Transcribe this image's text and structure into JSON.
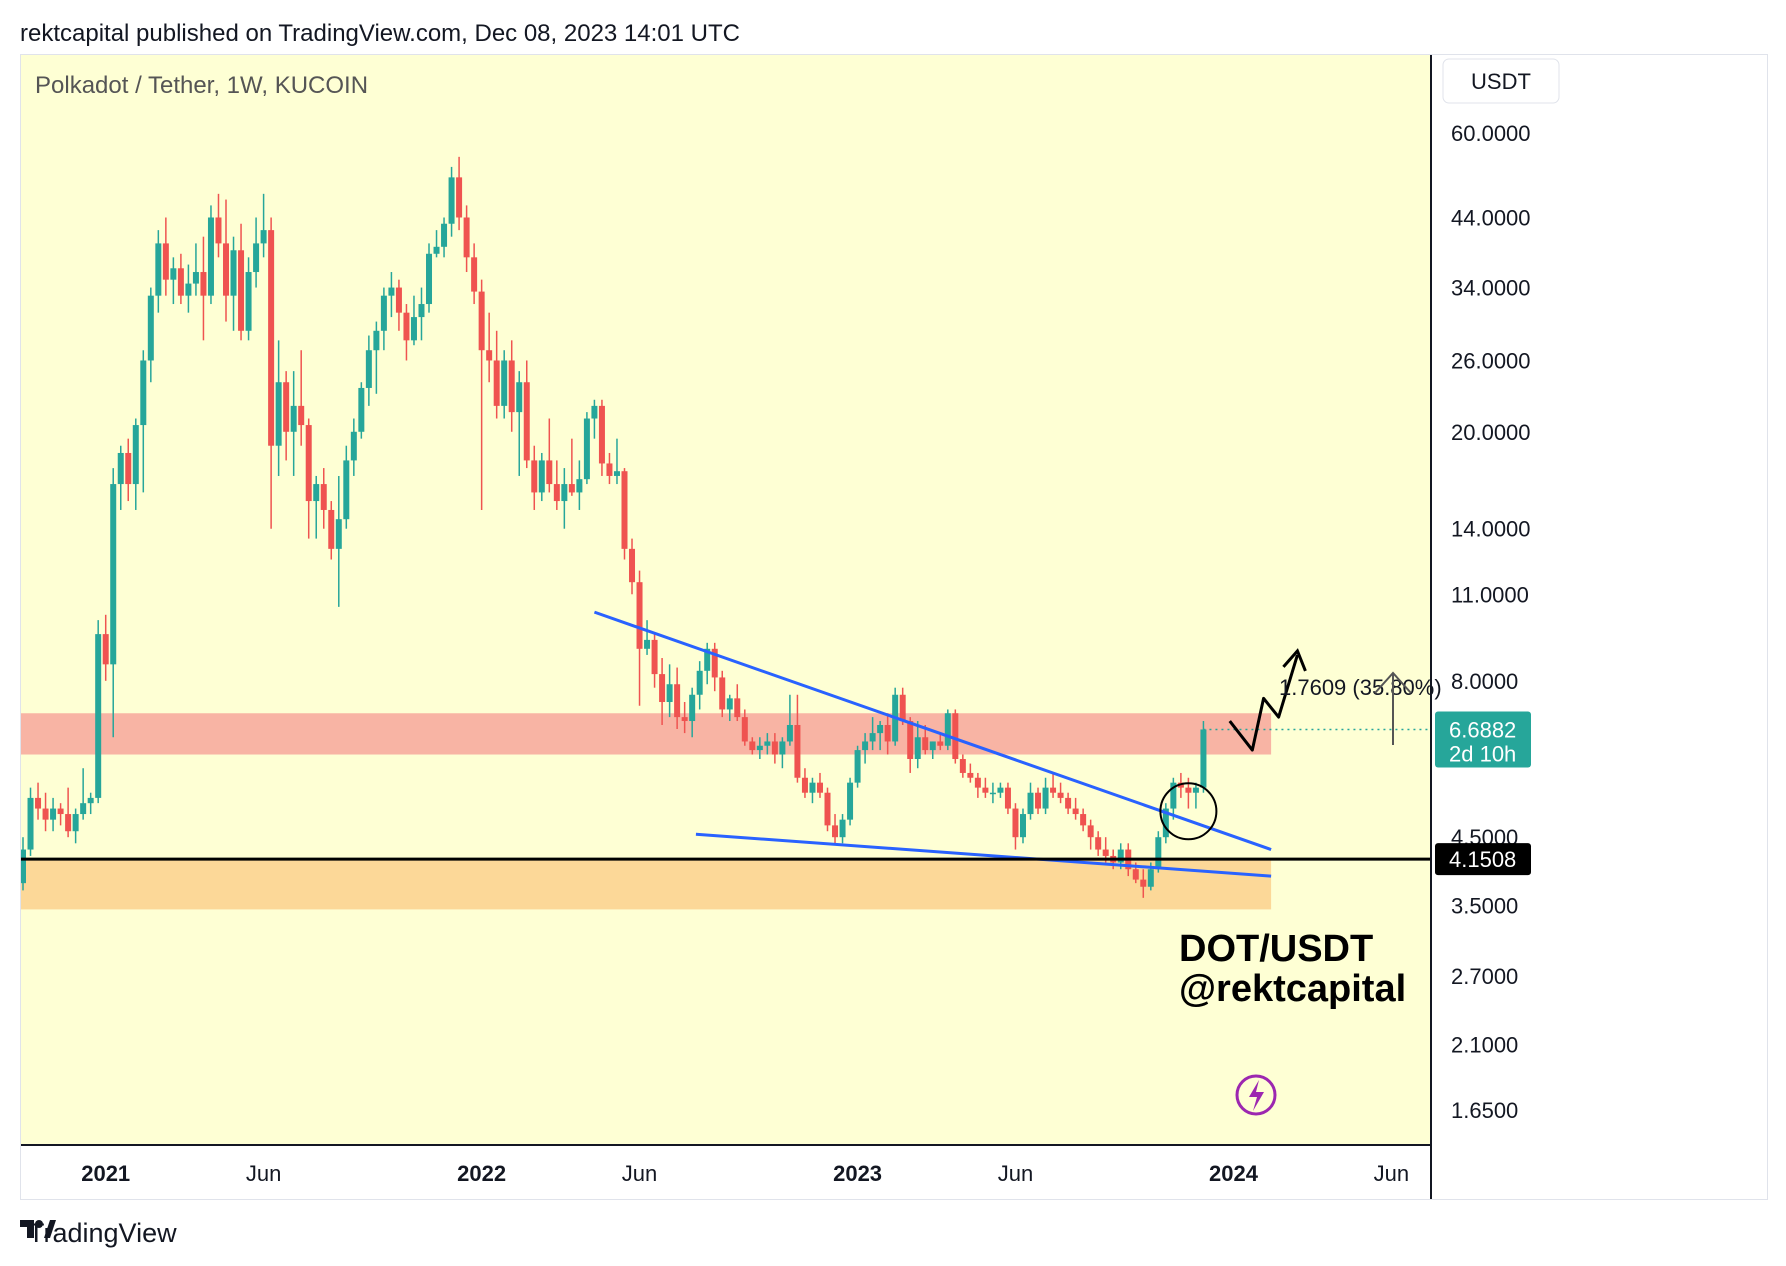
{
  "header": {
    "published_line": "rektcapital published on TradingView.com, Dec 08, 2023 14:01 UTC"
  },
  "footer": {
    "brand": "TradingView",
    "logo_icon": "tradingview-logo-icon"
  },
  "chart_data": {
    "type": "candlestick",
    "title": "Polkadot / Tether, 1W, KUCOIN",
    "currency": "USDT",
    "scale": "log",
    "ylim": [
      1.45,
      80
    ],
    "y_ticks": [
      "60.0000",
      "44.0000",
      "34.0000",
      "26.0000",
      "20.0000",
      "14.0000",
      "11.0000",
      "8.0000",
      "4.5000",
      "3.5000",
      "2.7000",
      "2.1000",
      "1.6500"
    ],
    "x_ticks": [
      {
        "label": "2021",
        "bold": true,
        "t": 2021.0
      },
      {
        "label": "Jun",
        "bold": false,
        "t": 2021.42
      },
      {
        "label": "2022",
        "bold": true,
        "t": 2022.0
      },
      {
        "label": "Jun",
        "bold": false,
        "t": 2022.42
      },
      {
        "label": "2023",
        "bold": true,
        "t": 2023.0
      },
      {
        "label": "Jun",
        "bold": false,
        "t": 2023.42
      },
      {
        "label": "2024",
        "bold": true,
        "t": 2024.0
      },
      {
        "label": "Jun",
        "bold": false,
        "t": 2024.42
      }
    ],
    "price_label": {
      "value": "6.6882",
      "price": 6.6882,
      "countdown": "2d 10h",
      "color": "#26a69a"
    },
    "support_label": {
      "value": "4.1508",
      "price": 4.1508
    },
    "measure_label": "1.7609 (35.80%)",
    "annotation_lines": [
      "DOT/USDT",
      "@rektcapital"
    ],
    "zones": [
      {
        "name": "resistance-zone",
        "from": 6.1,
        "to": 7.1,
        "color": "#f8b4a4"
      },
      {
        "name": "support-zone",
        "from": 3.45,
        "to": 4.15,
        "color": "#fcd898"
      }
    ],
    "trendlines": [
      {
        "name": "descending-resistance-line",
        "from": [
          2022.3,
          10.3
        ],
        "to": [
          2024.1,
          4.3
        ]
      },
      {
        "name": "lower-wedge-line",
        "from": [
          2022.57,
          4.55
        ],
        "to": [
          2024.1,
          3.9
        ]
      }
    ],
    "colors": {
      "up": "#26a69a",
      "down": "#ef5350",
      "background": "#feffd4",
      "trendline": "#2962ff",
      "upcolor_text": "#ffffff"
    },
    "ohlc": [
      [
        2020.78,
        3.8,
        4.5,
        3.7,
        4.3
      ],
      [
        2020.8,
        4.3,
        5.4,
        4.2,
        5.2
      ],
      [
        2020.82,
        5.2,
        5.5,
        4.8,
        5.0
      ],
      [
        2020.84,
        5.0,
        5.3,
        4.6,
        4.8
      ],
      [
        2020.86,
        4.8,
        5.2,
        4.6,
        5.0
      ],
      [
        2020.88,
        5.0,
        5.1,
        4.7,
        4.9
      ],
      [
        2020.9,
        4.9,
        5.4,
        4.5,
        4.6
      ],
      [
        2020.92,
        4.6,
        5.0,
        4.4,
        4.9
      ],
      [
        2020.94,
        4.9,
        5.8,
        4.8,
        5.1
      ],
      [
        2020.96,
        5.1,
        5.3,
        4.9,
        5.2
      ],
      [
        2020.98,
        5.2,
        10.0,
        5.1,
        9.5
      ],
      [
        2021.0,
        9.5,
        10.2,
        8.0,
        8.5
      ],
      [
        2021.02,
        8.5,
        17.5,
        6.5,
        16.5
      ],
      [
        2021.04,
        16.5,
        19.0,
        15.0,
        18.5
      ],
      [
        2021.06,
        18.5,
        19.5,
        15.5,
        16.5
      ],
      [
        2021.08,
        16.5,
        21.0,
        15.0,
        20.5
      ],
      [
        2021.1,
        20.5,
        27.0,
        16.0,
        26.0
      ],
      [
        2021.12,
        26.0,
        34.0,
        24.0,
        33.0
      ],
      [
        2021.14,
        33.0,
        42.0,
        31.0,
        40.0
      ],
      [
        2021.16,
        40.0,
        44.0,
        33.0,
        35.0
      ],
      [
        2021.18,
        35.0,
        38.0,
        32.0,
        36.5
      ],
      [
        2021.2,
        36.5,
        38.5,
        32.0,
        33.0
      ],
      [
        2021.22,
        33.0,
        37.0,
        31.0,
        34.5
      ],
      [
        2021.24,
        34.5,
        40.0,
        33.0,
        36.0
      ],
      [
        2021.26,
        36.0,
        41.0,
        28.0,
        33.0
      ],
      [
        2021.28,
        33.0,
        46.0,
        32.0,
        44.0
      ],
      [
        2021.3,
        44.0,
        48.0,
        38.0,
        40.0
      ],
      [
        2021.32,
        40.0,
        47.0,
        30.0,
        33.0
      ],
      [
        2021.34,
        33.0,
        41.0,
        29.0,
        39.0
      ],
      [
        2021.36,
        39.0,
        43.0,
        28.0,
        29.0
      ],
      [
        2021.38,
        29.0,
        38.0,
        28.0,
        36.0
      ],
      [
        2021.4,
        36.0,
        44.0,
        34.0,
        40.0
      ],
      [
        2021.42,
        40.0,
        48.0,
        38.0,
        42.0
      ],
      [
        2021.44,
        42.0,
        44.0,
        14.0,
        19.0
      ],
      [
        2021.46,
        19.0,
        28.0,
        17.0,
        24.0
      ],
      [
        2021.48,
        24.0,
        25.0,
        18.0,
        20.0
      ],
      [
        2021.5,
        20.0,
        25.0,
        17.0,
        22.0
      ],
      [
        2021.52,
        22.0,
        27.0,
        19.0,
        20.5
      ],
      [
        2021.54,
        20.5,
        21.0,
        13.5,
        15.5
      ],
      [
        2021.56,
        15.5,
        17.0,
        13.5,
        16.5
      ],
      [
        2021.58,
        16.5,
        17.5,
        14.0,
        15.0
      ],
      [
        2021.6,
        15.0,
        15.5,
        12.5,
        13.0
      ],
      [
        2021.62,
        13.0,
        17.0,
        10.5,
        14.5
      ],
      [
        2021.64,
        14.5,
        19.0,
        14.0,
        18.0
      ],
      [
        2021.66,
        18.0,
        21.0,
        17.0,
        20.0
      ],
      [
        2021.68,
        20.0,
        24.0,
        19.5,
        23.5
      ],
      [
        2021.7,
        23.5,
        28.5,
        22.0,
        27.0
      ],
      [
        2021.72,
        27.0,
        30.0,
        23.0,
        29.0
      ],
      [
        2021.74,
        29.0,
        34.0,
        27.0,
        33.0
      ],
      [
        2021.76,
        33.0,
        36.0,
        30.5,
        34.0
      ],
      [
        2021.78,
        34.0,
        35.0,
        29.0,
        31.0
      ],
      [
        2021.8,
        31.0,
        32.0,
        26.0,
        28.0
      ],
      [
        2021.82,
        28.0,
        33.0,
        27.5,
        30.5
      ],
      [
        2021.84,
        30.5,
        34.0,
        28.0,
        32.0
      ],
      [
        2021.86,
        32.0,
        40.0,
        31.0,
        38.5
      ],
      [
        2021.88,
        38.5,
        42.0,
        38.0,
        39.5
      ],
      [
        2021.9,
        39.5,
        44.0,
        38.0,
        43.0
      ],
      [
        2021.92,
        43.0,
        53.0,
        41.0,
        51.0
      ],
      [
        2021.94,
        51.0,
        55.0,
        42.0,
        44.0
      ],
      [
        2021.96,
        44.0,
        46.0,
        36.0,
        38.0
      ],
      [
        2021.98,
        38.0,
        40.0,
        32.0,
        33.5
      ],
      [
        2022.0,
        33.5,
        35.0,
        15.0,
        27.0
      ],
      [
        2022.02,
        27.0,
        31.0,
        24.0,
        26.0
      ],
      [
        2022.04,
        26.0,
        29.0,
        21.0,
        22.0
      ],
      [
        2022.06,
        22.0,
        27.0,
        21.0,
        26.0
      ],
      [
        2022.08,
        26.0,
        28.0,
        20.0,
        21.5
      ],
      [
        2022.1,
        21.5,
        25.0,
        17.0,
        24.0
      ],
      [
        2022.12,
        24.0,
        26.0,
        17.5,
        18.0
      ],
      [
        2022.14,
        18.0,
        19.0,
        15.0,
        16.0
      ],
      [
        2022.16,
        16.0,
        18.5,
        15.5,
        18.0
      ],
      [
        2022.18,
        18.0,
        21.0,
        16.0,
        16.5
      ],
      [
        2022.2,
        16.5,
        18.0,
        15.0,
        15.5
      ],
      [
        2022.22,
        15.5,
        17.5,
        14.0,
        16.5
      ],
      [
        2022.24,
        16.5,
        19.5,
        15.8,
        16.0
      ],
      [
        2022.26,
        16.0,
        18.0,
        15.0,
        16.8
      ],
      [
        2022.28,
        16.8,
        21.5,
        16.5,
        21.0
      ],
      [
        2022.3,
        21.0,
        22.5,
        19.5,
        22.0
      ],
      [
        2022.32,
        22.0,
        22.5,
        17.0,
        17.8
      ],
      [
        2022.34,
        17.8,
        18.5,
        16.5,
        17.0
      ],
      [
        2022.36,
        17.0,
        19.5,
        16.5,
        17.3
      ],
      [
        2022.38,
        17.3,
        17.5,
        12.5,
        13.0
      ],
      [
        2022.4,
        13.0,
        13.5,
        11.0,
        11.5
      ],
      [
        2022.42,
        11.5,
        12.0,
        7.3,
        9.0
      ],
      [
        2022.44,
        9.0,
        10.0,
        8.8,
        9.3
      ],
      [
        2022.46,
        9.3,
        9.5,
        7.8,
        8.2
      ],
      [
        2022.48,
        8.2,
        8.7,
        6.8,
        7.4
      ],
      [
        2022.5,
        7.4,
        8.5,
        7.0,
        7.9
      ],
      [
        2022.52,
        7.9,
        8.4,
        6.7,
        7.0
      ],
      [
        2022.54,
        7.0,
        7.4,
        6.6,
        6.9
      ],
      [
        2022.56,
        6.9,
        7.8,
        6.5,
        7.6
      ],
      [
        2022.58,
        7.6,
        8.6,
        7.2,
        8.3
      ],
      [
        2022.6,
        8.3,
        9.2,
        7.9,
        9.0
      ],
      [
        2022.62,
        9.0,
        9.2,
        7.7,
        8.1
      ],
      [
        2022.64,
        8.1,
        8.3,
        7.0,
        7.2
      ],
      [
        2022.66,
        7.2,
        7.6,
        6.9,
        7.5
      ],
      [
        2022.68,
        7.5,
        7.9,
        6.9,
        7.0
      ],
      [
        2022.7,
        7.0,
        7.2,
        6.3,
        6.4
      ],
      [
        2022.72,
        6.4,
        6.5,
        6.1,
        6.2
      ],
      [
        2022.74,
        6.2,
        6.5,
        6.0,
        6.3
      ],
      [
        2022.76,
        6.3,
        6.6,
        6.1,
        6.4
      ],
      [
        2022.78,
        6.4,
        6.6,
        5.9,
        6.1
      ],
      [
        2022.8,
        6.1,
        6.5,
        5.8,
        6.4
      ],
      [
        2022.82,
        6.4,
        7.6,
        6.3,
        6.8
      ],
      [
        2022.84,
        6.8,
        7.6,
        5.5,
        5.6
      ],
      [
        2022.86,
        5.6,
        5.8,
        5.2,
        5.3
      ],
      [
        2022.88,
        5.3,
        5.6,
        5.1,
        5.5
      ],
      [
        2022.9,
        5.5,
        5.7,
        5.2,
        5.3
      ],
      [
        2022.92,
        5.3,
        5.4,
        4.6,
        4.7
      ],
      [
        2022.94,
        4.7,
        4.9,
        4.4,
        4.5
      ],
      [
        2022.96,
        4.5,
        4.9,
        4.4,
        4.8
      ],
      [
        2022.98,
        4.8,
        5.6,
        4.7,
        5.5
      ],
      [
        2023.0,
        5.5,
        6.3,
        5.4,
        6.2
      ],
      [
        2023.02,
        6.2,
        6.6,
        5.9,
        6.4
      ],
      [
        2023.04,
        6.4,
        7.0,
        6.2,
        6.6
      ],
      [
        2023.06,
        6.6,
        6.9,
        6.2,
        6.8
      ],
      [
        2023.08,
        6.8,
        7.1,
        6.1,
        6.4
      ],
      [
        2023.1,
        6.4,
        7.8,
        6.3,
        7.6
      ],
      [
        2023.12,
        7.6,
        7.8,
        6.8,
        6.9
      ],
      [
        2023.14,
        6.9,
        7.0,
        5.7,
        6.0
      ],
      [
        2023.16,
        6.0,
        6.9,
        5.8,
        6.5
      ],
      [
        2023.18,
        6.5,
        6.8,
        6.1,
        6.2
      ],
      [
        2023.2,
        6.2,
        6.4,
        6.0,
        6.4
      ],
      [
        2023.22,
        6.4,
        6.6,
        6.2,
        6.3
      ],
      [
        2023.24,
        6.3,
        7.2,
        6.2,
        7.1
      ],
      [
        2023.26,
        7.1,
        7.2,
        5.9,
        6.0
      ],
      [
        2023.28,
        6.0,
        6.1,
        5.6,
        5.7
      ],
      [
        2023.3,
        5.7,
        5.9,
        5.5,
        5.6
      ],
      [
        2023.32,
        5.6,
        5.7,
        5.2,
        5.4
      ],
      [
        2023.34,
        5.4,
        5.6,
        5.2,
        5.3
      ],
      [
        2023.36,
        5.3,
        5.5,
        5.1,
        5.3
      ],
      [
        2023.38,
        5.3,
        5.5,
        5.2,
        5.4
      ],
      [
        2023.4,
        5.4,
        5.5,
        4.9,
        5.0
      ],
      [
        2023.42,
        5.0,
        5.1,
        4.3,
        4.5
      ],
      [
        2023.44,
        4.5,
        5.0,
        4.4,
        4.9
      ],
      [
        2023.46,
        4.9,
        5.5,
        4.8,
        5.3
      ],
      [
        2023.48,
        5.3,
        5.4,
        4.9,
        5.0
      ],
      [
        2023.5,
        5.0,
        5.6,
        4.9,
        5.4
      ],
      [
        2023.52,
        5.4,
        5.7,
        5.2,
        5.3
      ],
      [
        2023.54,
        5.3,
        5.5,
        5.1,
        5.2
      ],
      [
        2023.56,
        5.2,
        5.3,
        4.9,
        5.0
      ],
      [
        2023.58,
        5.0,
        5.2,
        4.8,
        4.9
      ],
      [
        2023.6,
        4.9,
        5.0,
        4.6,
        4.7
      ],
      [
        2023.62,
        4.7,
        4.8,
        4.3,
        4.5
      ],
      [
        2023.64,
        4.5,
        4.6,
        4.2,
        4.3
      ],
      [
        2023.66,
        4.3,
        4.5,
        4.1,
        4.2
      ],
      [
        2023.68,
        4.2,
        4.3,
        4.0,
        4.1
      ],
      [
        2023.7,
        4.1,
        4.4,
        4.0,
        4.3
      ],
      [
        2023.72,
        4.3,
        4.4,
        3.9,
        4.0
      ],
      [
        2023.74,
        4.0,
        4.1,
        3.8,
        3.85
      ],
      [
        2023.76,
        3.85,
        4.0,
        3.6,
        3.75
      ],
      [
        2023.78,
        3.75,
        4.1,
        3.7,
        4.0
      ],
      [
        2023.8,
        4.0,
        4.6,
        3.95,
        4.5
      ],
      [
        2023.82,
        4.5,
        5.1,
        4.4,
        5.0
      ],
      [
        2023.84,
        5.0,
        5.6,
        4.8,
        5.5
      ],
      [
        2023.86,
        5.5,
        5.7,
        5.2,
        5.4
      ],
      [
        2023.88,
        5.4,
        5.6,
        5.0,
        5.3
      ],
      [
        2023.9,
        5.3,
        5.5,
        5.0,
        5.4
      ],
      [
        2023.92,
        5.4,
        6.9,
        5.3,
        6.6882
      ]
    ]
  }
}
